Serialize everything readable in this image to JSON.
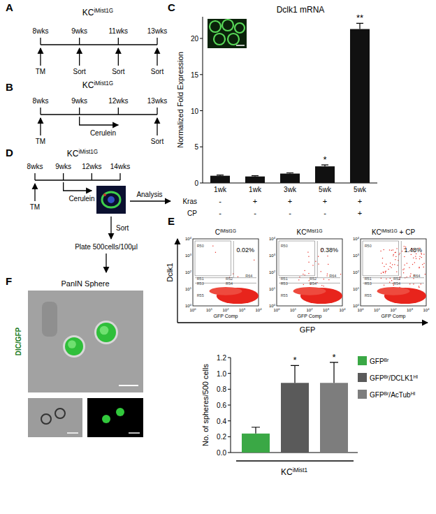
{
  "chart_data": [
    {
      "type": "bar",
      "panel_label": "C",
      "title": "Dclk1 mRNA",
      "y_label": "Normalized Fold Expression",
      "categories": [
        "1wk",
        "1wk",
        "3wk",
        "5wk",
        "5wk"
      ],
      "values": [
        1.0,
        0.9,
        1.3,
        2.3,
        21.3
      ],
      "errors": [
        0.1,
        0.1,
        0.1,
        0.2,
        0.8
      ],
      "annotations": [
        null,
        null,
        null,
        "*",
        "**"
      ],
      "color": "#111111",
      "ylim": [
        0,
        23
      ],
      "yticks": [
        0,
        5,
        10,
        15,
        20
      ],
      "rows": [
        {
          "label": "Kras",
          "values": [
            "-",
            "+",
            "+",
            "+",
            "+"
          ]
        },
        {
          "label": "CP",
          "values": [
            "-",
            "-",
            "-",
            "-",
            "+"
          ]
        }
      ]
    },
    {
      "type": "bar",
      "y_label": "No. of spheres/500 cells",
      "x_label": [
        "KC",
        "iMist1"
      ],
      "categories": [
        null
      ],
      "series": [
        {
          "name": [
            "GFP",
            "Br"
          ],
          "color": "#3aa845",
          "values": [
            0.24
          ],
          "errors": [
            0.08
          ],
          "annotations": [
            null
          ]
        },
        {
          "name": [
            "GFP",
            "Br",
            "/DCLK1",
            "HI"
          ],
          "color": "#5a5a5a",
          "values": [
            0.88
          ],
          "errors": [
            0.22
          ],
          "annotations": [
            "*"
          ]
        },
        {
          "name": [
            "GFP",
            "Br",
            "/AcTub",
            "HI"
          ],
          "color": "#7d7d7d",
          "values": [
            0.88
          ],
          "errors": [
            0.26
          ],
          "annotations": [
            "*"
          ]
        }
      ],
      "ylim": [
        0,
        1.2
      ],
      "yticks": [
        {
          "value": 0,
          "label": "0.0"
        },
        0.2,
        0.4,
        0.6,
        0.8,
        {
          "value": 1,
          "label": "1.0"
        },
        1.2
      ],
      "legend": "top-right"
    }
  ],
  "timelines": [
    {
      "panel_label": "A",
      "title": [
        "KC",
        "iMist1G"
      ],
      "points": [
        "8wks",
        "9wks",
        "11wks",
        "13wks"
      ],
      "events": [
        "TM",
        "Sort",
        "Sort",
        "Sort"
      ]
    },
    {
      "panel_label": "B",
      "title": [
        "KC",
        "iMist1G"
      ],
      "points": [
        "8wks",
        "9wks",
        "12wks",
        "13wks"
      ],
      "events": [
        "TM",
        null,
        null,
        "Sort"
      ],
      "span": {
        "from": 1,
        "to": 2,
        "label": "Cerulein"
      }
    },
    {
      "panel_label": "D",
      "title": [
        "KC",
        "iMist1G"
      ],
      "points": [
        "8wks",
        "9wks",
        "12wks",
        "14wks"
      ],
      "events": [
        "TM",
        null,
        null,
        null
      ],
      "span": {
        "from": 1,
        "to": 2,
        "label": "Cerulein"
      }
    }
  ],
  "workflow": {
    "analysis": "Analysis",
    "sort": "Sort",
    "plate": "Plate 500cells/100µl"
  },
  "flow": {
    "panel_label": "E",
    "y_label": "Dclk1",
    "x_label": "GFP",
    "x_axis_title": "GFP Comp",
    "axis_ticks": [
      [
        "10",
        "0"
      ],
      [
        "10",
        "1"
      ],
      [
        "10",
        "2"
      ],
      [
        "10",
        "3"
      ],
      [
        "10",
        "4"
      ]
    ],
    "gates": [
      "R50",
      "R64",
      "R51",
      "R52",
      "R53",
      "R54",
      "R55"
    ],
    "plots": [
      {
        "title": [
          "C",
          "iMist1G"
        ],
        "percent_label": "0.02%"
      },
      {
        "title": [
          "KC",
          "iMist1G"
        ],
        "percent_label": "0.38%"
      },
      {
        "title": [
          "KC",
          "iMist1G",
          " + CP"
        ],
        "percent_label": "1.48%"
      }
    ]
  },
  "sphere_images": {
    "panel_label": "F",
    "title": "PanIN Sphere",
    "channel_label": "DIC/GFP"
  }
}
